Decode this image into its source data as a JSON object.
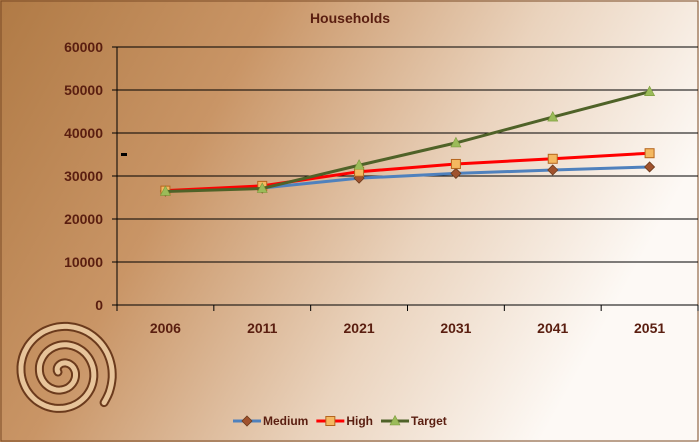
{
  "chart_data": {
    "type": "line",
    "title": "Households",
    "categories": [
      "2006",
      "2011",
      "2021",
      "2031",
      "2041",
      "2051"
    ],
    "series": [
      {
        "name": "Medium",
        "values": [
          26500,
          27200,
          29500,
          30600,
          31400,
          32100
        ],
        "color": "#4f81bd",
        "marker": "diamond",
        "marker_color": "#a0522d"
      },
      {
        "name": "High",
        "values": [
          26600,
          27700,
          31000,
          32800,
          34000,
          35300
        ],
        "color": "#ff0000",
        "marker": "square",
        "marker_color": "#f4b860"
      },
      {
        "name": "Target",
        "values": [
          26400,
          27100,
          32500,
          37700,
          43700,
          49600
        ],
        "color": "#4f6228",
        "marker": "triangle",
        "marker_color": "#9bbb59"
      }
    ],
    "ylim": [
      0,
      60000
    ],
    "yticks": [
      "0",
      "10000",
      "20000",
      "30000",
      "40000",
      "50000",
      "60000"
    ],
    "xlabel": "",
    "ylabel": "",
    "grid": "horizontal",
    "legend": "bottom"
  },
  "colors": {
    "background_dark": "#b98550",
    "background_light": "#fbf6f1",
    "text": "#5a1e10"
  },
  "decoration": "spiral-logo"
}
